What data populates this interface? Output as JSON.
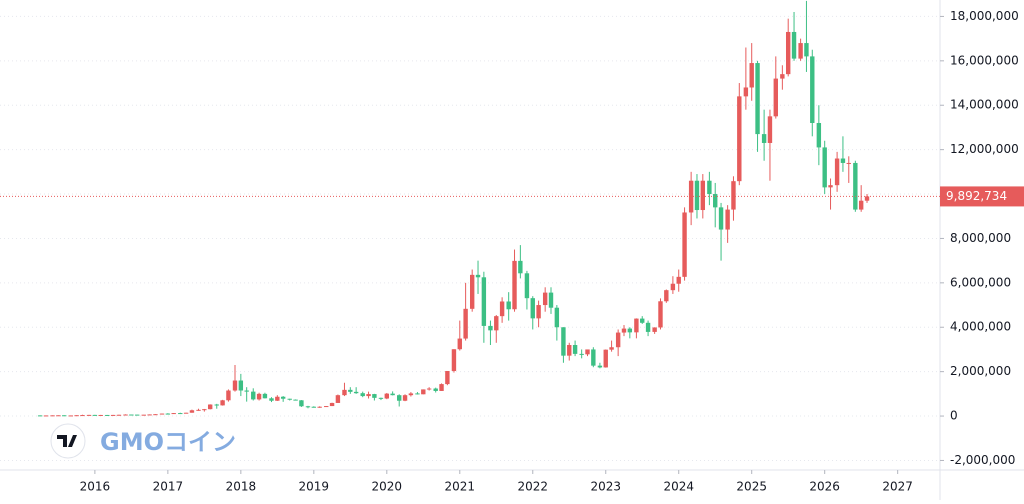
{
  "chart_data": {
    "type": "candlestick",
    "up_color": "#e65b5b",
    "down_color": "#3cbf84",
    "grid": true,
    "watermark": "GMOコイン",
    "xlim": [
      2014.7,
      2027.58
    ],
    "xticks": [
      2016,
      2017,
      2018,
      2019,
      2020,
      2021,
      2022,
      2023,
      2024,
      2025,
      2026,
      2027
    ],
    "ylim": [
      -2430000,
      18740000
    ],
    "yticks": [
      {
        "value": -2000000,
        "label": "-2,000,000"
      },
      0,
      {
        "value": 2000000,
        "label": "2,000,000"
      },
      {
        "value": 4000000,
        "label": "4,000,000"
      },
      {
        "value": 6000000,
        "label": "6,000,000"
      },
      {
        "value": 8000000,
        "label": "8,000,000"
      },
      {
        "value": 10000000,
        "label": "10,000,000"
      },
      {
        "value": 12000000,
        "label": "12,000,000"
      },
      {
        "value": 14000000,
        "label": "14,000,000"
      },
      {
        "value": 16000000,
        "label": "16,000,000"
      },
      {
        "value": 18000000,
        "label": "18,000,000"
      }
    ],
    "price_line": {
      "value": 9892734,
      "label": "9,892,734"
    },
    "x": [
      2015.25,
      2015.33,
      2015.42,
      2015.5,
      2015.58,
      2015.67,
      2015.75,
      2015.83,
      2015.92,
      2016,
      2016.08,
      2016.17,
      2016.25,
      2016.33,
      2016.42,
      2016.5,
      2016.58,
      2016.67,
      2016.75,
      2016.83,
      2016.92,
      2017,
      2017.08,
      2017.17,
      2017.25,
      2017.33,
      2017.42,
      2017.5,
      2017.58,
      2017.67,
      2017.75,
      2017.83,
      2017.92,
      2018,
      2018.08,
      2018.17,
      2018.25,
      2018.33,
      2018.42,
      2018.5,
      2018.58,
      2018.67,
      2018.75,
      2018.83,
      2018.92,
      2019,
      2019.08,
      2019.17,
      2019.25,
      2019.33,
      2019.42,
      2019.5,
      2019.58,
      2019.67,
      2019.75,
      2019.83,
      2019.92,
      2020,
      2020.08,
      2020.17,
      2020.25,
      2020.33,
      2020.42,
      2020.5,
      2020.58,
      2020.67,
      2020.75,
      2020.83,
      2020.92,
      2021,
      2021.08,
      2021.17,
      2021.25,
      2021.33,
      2021.42,
      2021.5,
      2021.58,
      2021.67,
      2021.75,
      2021.83,
      2021.92,
      2022,
      2022.08,
      2022.17,
      2022.25,
      2022.33,
      2022.42,
      2022.5,
      2022.58,
      2022.67,
      2022.75,
      2022.83,
      2022.92,
      2023,
      2023.08,
      2023.17,
      2023.25,
      2023.33,
      2023.42,
      2023.5,
      2023.58,
      2023.67,
      2023.75,
      2023.83,
      2023.92,
      2024,
      2024.08,
      2024.17,
      2024.25,
      2024.33,
      2024.42,
      2024.5,
      2024.58,
      2024.67,
      2024.75,
      2024.83,
      2024.92,
      2025,
      2025.08,
      2025.17,
      2025.25,
      2025.33,
      2025.42,
      2025.5,
      2025.58,
      2025.67,
      2025.75,
      2025.83,
      2025.92,
      2026,
      2026.08,
      2026.17,
      2026.25,
      2026.33,
      2026.42,
      2026.5,
      2026.58
    ],
    "open": [
      30000,
      28000,
      28000,
      32000,
      35000,
      28000,
      28000,
      38000,
      45000,
      52000,
      45000,
      49000,
      47000,
      51000,
      58000,
      69000,
      65000,
      58000,
      62000,
      73000,
      84000,
      112000,
      110000,
      134000,
      120000,
      150000,
      260000,
      280000,
      310000,
      520000,
      480000,
      710000,
      1150000,
      1600000,
      1150000,
      1100000,
      750000,
      1000000,
      800000,
      690000,
      870000,
      780000,
      740000,
      710000,
      440000,
      420000,
      380000,
      420000,
      450000,
      590000,
      940000,
      1180000,
      1090000,
      1030000,
      900000,
      990000,
      820000,
      790000,
      1010000,
      940000,
      690000,
      940000,
      1020000,
      980000,
      1200000,
      1240000,
      1130000,
      1440000,
      2030000,
      3010000,
      3490000,
      4830000,
      6360000,
      6250000,
      4060000,
      3860000,
      4500000,
      5160000,
      4810000,
      6990000,
      6430000,
      5310000,
      4400000,
      5000000,
      5560000,
      4880000,
      4000000,
      2720000,
      3200000,
      2800000,
      2780000,
      3000000,
      2270000,
      2190000,
      2990000,
      3100000,
      3760000,
      3940000,
      3770000,
      4390000,
      4200000,
      3790000,
      3990000,
      5170000,
      5670000,
      5960000,
      6270000,
      9170000,
      10600000,
      9280000,
      10600000,
      10000000,
      9400000,
      8400000,
      9300000,
      10580000,
      14400000,
      14800000,
      15900000,
      12700000,
      12300000,
      13500000,
      15200000,
      15400000,
      17300000,
      16100000,
      16800000,
      16200000,
      13200000,
      12100000,
      10300000,
      10400000,
      11600000,
      11400000,
      11400000,
      9300000,
      9700000
    ],
    "high": [
      31000,
      29000,
      33000,
      39000,
      35000,
      29000,
      40000,
      60000,
      55000,
      55000,
      52000,
      50000,
      52000,
      60000,
      80000,
      70000,
      66000,
      62000,
      75000,
      85000,
      115000,
      130000,
      135000,
      150000,
      150000,
      290000,
      330000,
      320000,
      530000,
      550000,
      730000,
      1200000,
      2300000,
      1900000,
      1300000,
      1250000,
      1050000,
      1050000,
      850000,
      940000,
      900000,
      780000,
      750000,
      720000,
      460000,
      440000,
      440000,
      450000,
      600000,
      970000,
      1500000,
      1300000,
      1300000,
      1100000,
      1100000,
      1000000,
      830000,
      1040000,
      1110000,
      980000,
      980000,
      1080000,
      1080000,
      1200000,
      1300000,
      1280000,
      1470000,
      2030000,
      3010000,
      4300000,
      6000000,
      6600000,
      7000000,
      6500000,
      4300000,
      4550000,
      5350000,
      5580000,
      7500000,
      7700000,
      6540000,
      5400000,
      5200000,
      5800000,
      5800000,
      5000000,
      4000000,
      3300000,
      3400000,
      3000000,
      3000000,
      3100000,
      2400000,
      3000000,
      3400000,
      3900000,
      4100000,
      4000000,
      4400000,
      4500000,
      4300000,
      4000000,
      5300000,
      5700000,
      6300000,
      6600000,
      9400000,
      11000000,
      10900000,
      10900000,
      11000000,
      10500000,
      9600000,
      9500000,
      10800000,
      15000000,
      16600000,
      16800000,
      16000000,
      13800000,
      13800000,
      16200000,
      15800000,
      17900000,
      18200000,
      17000000,
      18700000,
      16500000,
      14000000,
      12400000,
      10700000,
      11900000,
      12600000,
      11700000,
      11500000,
      10400000,
      10000000
    ],
    "low": [
      25000,
      27000,
      26000,
      32000,
      24000,
      27000,
      28000,
      38000,
      43000,
      44000,
      44000,
      45000,
      46000,
      49000,
      55000,
      64000,
      55000,
      56000,
      62000,
      71000,
      82000,
      85000,
      105000,
      100000,
      117000,
      150000,
      240000,
      200000,
      300000,
      330000,
      470000,
      650000,
      1100000,
      900000,
      650000,
      700000,
      700000,
      790000,
      630000,
      680000,
      640000,
      700000,
      700000,
      410000,
      350000,
      380000,
      370000,
      410000,
      450000,
      590000,
      900000,
      1000000,
      1000000,
      850000,
      790000,
      700000,
      720000,
      760000,
      930000,
      430000,
      670000,
      880000,
      970000,
      980000,
      1150000,
      1060000,
      1130000,
      1390000,
      1960000,
      2950000,
      3400000,
      4700000,
      5500000,
      3300000,
      3200000,
      3300000,
      4200000,
      4300000,
      4700000,
      6200000,
      4800000,
      3900000,
      4000000,
      4700000,
      4600000,
      3400000,
      2400000,
      2500000,
      2700000,
      2600000,
      2700000,
      2200000,
      2150000,
      2180000,
      2900000,
      2700000,
      3600000,
      3500000,
      3500000,
      4150000,
      3600000,
      3700000,
      3900000,
      5100000,
      5500000,
      5600000,
      6100000,
      8600000,
      8900000,
      8900000,
      9500000,
      8500000,
      7000000,
      7800000,
      8800000,
      10400000,
      13800000,
      14200000,
      11900000,
      11500000,
      10600000,
      13400000,
      14700000,
      15300000,
      16000000,
      16000000,
      15500000,
      12600000,
      11300000,
      10000000,
      9300000,
      10100000,
      11000000,
      10500000,
      9200000,
      9200000,
      9600000
    ],
    "close": [
      28000,
      28000,
      32000,
      35000,
      28000,
      28000,
      38000,
      45000,
      52000,
      45000,
      49000,
      47000,
      51000,
      58000,
      69000,
      65000,
      58000,
      62000,
      73000,
      84000,
      112000,
      110000,
      134000,
      120000,
      150000,
      260000,
      280000,
      310000,
      520000,
      480000,
      710000,
      1150000,
      1600000,
      1150000,
      1100000,
      750000,
      1000000,
      800000,
      690000,
      870000,
      780000,
      740000,
      710000,
      440000,
      420000,
      380000,
      420000,
      450000,
      590000,
      940000,
      1180000,
      1090000,
      1030000,
      900000,
      990000,
      820000,
      790000,
      1010000,
      940000,
      690000,
      940000,
      1020000,
      980000,
      1200000,
      1240000,
      1130000,
      1440000,
      2030000,
      3010000,
      3490000,
      4830000,
      6360000,
      6250000,
      4060000,
      3860000,
      4500000,
      5160000,
      4810000,
      6990000,
      6430000,
      5310000,
      4400000,
      5000000,
      5560000,
      4880000,
      4000000,
      2720000,
      3200000,
      2800000,
      2780000,
      3000000,
      2270000,
      2190000,
      2990000,
      3100000,
      3760000,
      3940000,
      3770000,
      4390000,
      4200000,
      3790000,
      3990000,
      5170000,
      5670000,
      5960000,
      6270000,
      9170000,
      10600000,
      9280000,
      10600000,
      10000000,
      9400000,
      8400000,
      9300000,
      10580000,
      14400000,
      14800000,
      15900000,
      12700000,
      12300000,
      13500000,
      15200000,
      15400000,
      17300000,
      16100000,
      16800000,
      16200000,
      13200000,
      12100000,
      10300000,
      10400000,
      11600000,
      11400000,
      11400000,
      9300000,
      9700000,
      9892734
    ]
  }
}
